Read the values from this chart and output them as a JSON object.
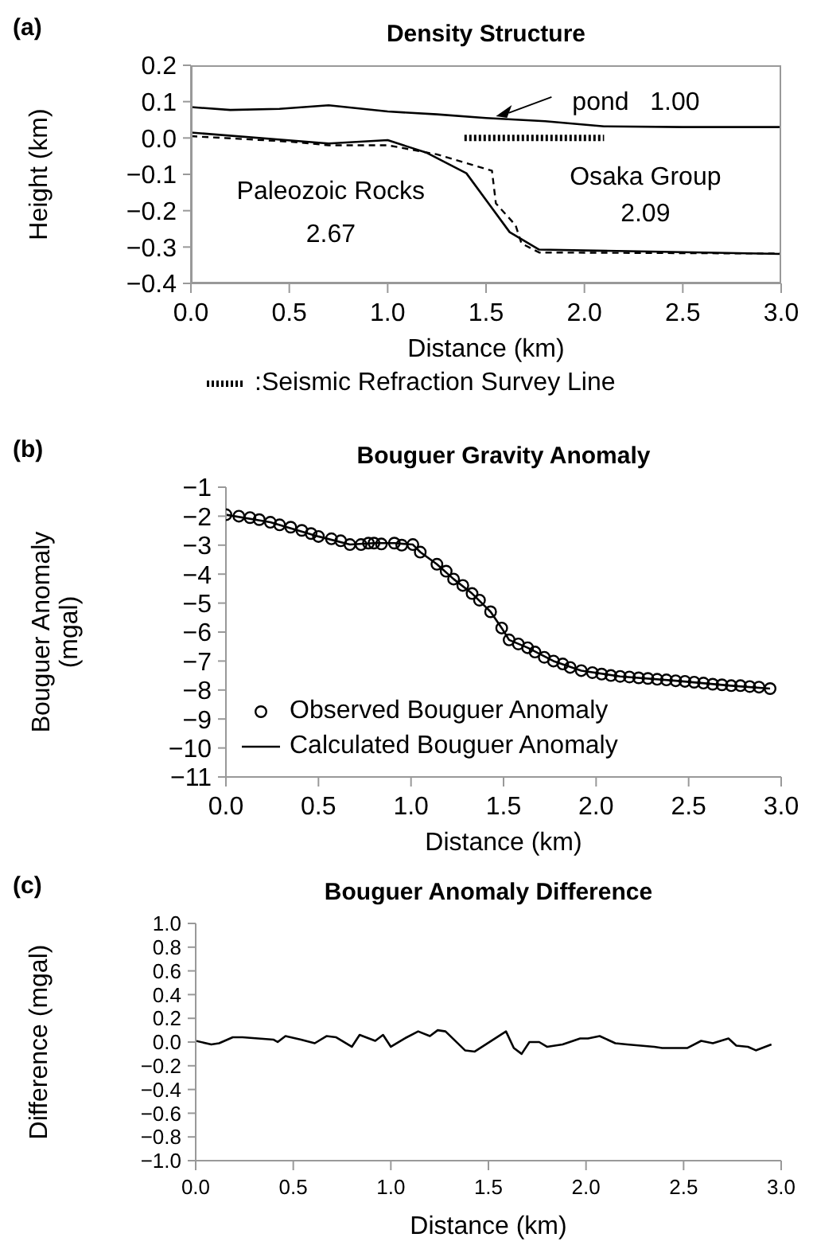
{
  "chart_data": [
    {
      "type": "line",
      "title": "Density Structure",
      "xlabel": "Distance (km)",
      "ylabel": "Height (km)",
      "xlim": [
        0,
        3
      ],
      "xticks": [
        {
          "value": 0,
          "label": "0.0"
        },
        0.5,
        {
          "value": 1,
          "label": "1.0"
        },
        1.5,
        {
          "value": 2,
          "label": "2.0"
        },
        2.5,
        {
          "value": 3,
          "label": "3.0"
        }
      ],
      "ylim": [
        -0.4,
        0.2
      ],
      "yticks": [
        -0.4,
        -0.3,
        -0.2,
        -0.1,
        {
          "value": 0,
          "label": "0.0"
        },
        0.1,
        0.2
      ],
      "grid": false,
      "legend": "bottom",
      "series": [
        {
          "color": "#000000",
          "x": [
            0,
            0.2,
            0.45,
            0.7,
            1.0,
            1.25,
            1.5,
            1.8,
            2.1,
            2.5,
            3.0
          ],
          "values": [
            0.085,
            0.077,
            0.08,
            0.09,
            0.073,
            0.065,
            0.055,
            0.046,
            0.032,
            0.03,
            0.03
          ]
        },
        {
          "color": "#000000",
          "line_style": "dashed",
          "x": [
            0,
            0.5,
            0.7,
            1.0,
            1.25,
            1.53,
            1.55,
            1.65,
            1.68,
            1.77,
            3.0
          ],
          "values": [
            0.005,
            -0.01,
            -0.02,
            -0.02,
            -0.045,
            -0.09,
            -0.18,
            -0.24,
            -0.29,
            -0.315,
            -0.318
          ]
        },
        {
          "color": "#000000",
          "x": [
            0,
            0.7,
            1.0,
            1.2,
            1.4,
            1.62,
            1.77,
            3.0
          ],
          "values": [
            0.015,
            -0.015,
            -0.006,
            -0.041,
            -0.097,
            -0.259,
            -0.307,
            -0.319
          ]
        },
        {
          "name": ":Seismic Refraction Survey Line",
          "color": "#000000",
          "line_style": "dotted",
          "x": [
            1.39,
            2.1
          ],
          "values": [
            0,
            0
          ]
        }
      ],
      "annotations": [
        "(a)",
        {
          "text": "pond   1.00",
          "x": 1.55,
          "y": 0.06
        },
        "Paleozoic Rocks",
        "2.67",
        "Osaka Group",
        "2.09"
      ]
    },
    {
      "type": "line",
      "title": "Bouguer Gravity Anomaly",
      "xlabel": "Distance (km)",
      "ylabel": "Bouguer Anomaly (mgal)",
      "xlim": [
        0,
        3
      ],
      "xticks": [
        {
          "value": 0,
          "label": "0.0"
        },
        0.5,
        {
          "value": 1,
          "label": "1.0"
        },
        1.5,
        {
          "value": 2,
          "label": "2.0"
        },
        2.5,
        {
          "value": 3,
          "label": "3.0"
        }
      ],
      "ylim": [
        -11,
        -1
      ],
      "yticks": [
        -11,
        -10,
        -9,
        -8,
        -7,
        -6,
        -5,
        -4,
        -3,
        -2,
        -1
      ],
      "grid": false,
      "legend": "bottom left",
      "series": [
        {
          "name": "Observed Bouguer Anomaly",
          "type": "scatter",
          "marker": "circle",
          "color": "#000000",
          "x": [
            0,
            0.07,
            0.13,
            0.18,
            0.24,
            0.29,
            0.35,
            0.41,
            0.46,
            0.5,
            0.57,
            0.62,
            0.67,
            0.73,
            0.77,
            0.8,
            0.84,
            0.91,
            0.95,
            1.01,
            1.05,
            1.14,
            1.19,
            1.23,
            1.28,
            1.33,
            1.37,
            1.43,
            1.49,
            1.53,
            1.58,
            1.63,
            1.67,
            1.72,
            1.77,
            1.82,
            1.86,
            1.92,
            1.98,
            2.03,
            2.08,
            2.13,
            2.18,
            2.23,
            2.28,
            2.33,
            2.38,
            2.43,
            2.48,
            2.53,
            2.58,
            2.63,
            2.68,
            2.73,
            2.78,
            2.83,
            2.88,
            2.94
          ],
          "values": [
            -1.95,
            -2.0,
            -2.05,
            -2.12,
            -2.21,
            -2.3,
            -2.38,
            -2.49,
            -2.6,
            -2.7,
            -2.78,
            -2.85,
            -2.98,
            -2.98,
            -2.93,
            -2.93,
            -2.96,
            -2.93,
            -3.0,
            -2.98,
            -3.24,
            -3.66,
            -3.9,
            -4.17,
            -4.39,
            -4.67,
            -4.9,
            -5.3,
            -5.86,
            -6.27,
            -6.41,
            -6.54,
            -6.69,
            -6.87,
            -7.0,
            -7.1,
            -7.22,
            -7.33,
            -7.4,
            -7.45,
            -7.5,
            -7.53,
            -7.55,
            -7.58,
            -7.6,
            -7.63,
            -7.65,
            -7.68,
            -7.7,
            -7.73,
            -7.76,
            -7.8,
            -7.82,
            -7.85,
            -7.85,
            -7.88,
            -7.9,
            -7.95
          ]
        },
        {
          "name": "Calculated Bouguer Anomaly",
          "color": "#000000",
          "x": [
            0,
            0.24,
            0.5,
            0.67,
            0.8,
            0.91,
            1.01,
            1.05,
            1.14,
            1.23,
            1.33,
            1.43,
            1.49,
            1.53,
            1.63,
            1.77,
            1.92,
            2.13,
            2.43,
            2.73,
            2.94
          ],
          "values": [
            -1.95,
            -2.21,
            -2.7,
            -2.98,
            -2.93,
            -2.93,
            -2.98,
            -3.24,
            -3.66,
            -4.17,
            -4.67,
            -5.3,
            -5.86,
            -6.27,
            -6.54,
            -7.0,
            -7.33,
            -7.53,
            -7.68,
            -7.85,
            -7.95
          ]
        }
      ],
      "annotations": [
        "(b)"
      ]
    },
    {
      "type": "line",
      "title": "Bouguer Anomaly Difference",
      "xlabel": "Distance (km)",
      "ylabel": "Difference (mgal)",
      "xlim": [
        0,
        3
      ],
      "xticks": [
        {
          "value": 0,
          "label": "0.0"
        },
        0.5,
        {
          "value": 1,
          "label": "1.0"
        },
        1.5,
        {
          "value": 2,
          "label": "2.0"
        },
        2.5,
        {
          "value": 3,
          "label": "3.0"
        }
      ],
      "ylim": [
        -1,
        1
      ],
      "yticks": [
        {
          "value": -1,
          "label": "−1.0"
        },
        -0.8,
        -0.6,
        -0.4,
        -0.2,
        {
          "value": 0,
          "label": "0.0"
        },
        0.2,
        0.4,
        0.6,
        0.8,
        {
          "value": 1,
          "label": "1.0"
        }
      ],
      "grid": false,
      "series": [
        {
          "color": "#000000",
          "x": [
            0,
            0.08,
            0.12,
            0.19,
            0.24,
            0.32,
            0.4,
            0.42,
            0.46,
            0.54,
            0.61,
            0.67,
            0.72,
            0.8,
            0.84,
            0.92,
            0.96,
            1.0,
            1.07,
            1.14,
            1.2,
            1.24,
            1.28,
            1.38,
            1.43,
            1.59,
            1.63,
            1.67,
            1.71,
            1.76,
            1.8,
            1.88,
            1.97,
            2.01,
            2.07,
            2.15,
            2.21,
            2.35,
            2.39,
            2.52,
            2.59,
            2.65,
            2.73,
            2.77,
            2.83,
            2.87,
            2.95
          ],
          "values": [
            0.01,
            -0.02,
            -0.01,
            0.04,
            0.04,
            0.03,
            0.02,
            0.0,
            0.05,
            0.02,
            -0.01,
            0.05,
            0.04,
            -0.04,
            0.06,
            0.01,
            0.06,
            -0.04,
            0.03,
            0.09,
            0.05,
            0.1,
            0.09,
            -0.07,
            -0.08,
            0.09,
            -0.05,
            -0.1,
            0.0,
            0.0,
            -0.04,
            -0.02,
            0.03,
            0.03,
            0.05,
            -0.01,
            -0.02,
            -0.04,
            -0.05,
            -0.05,
            0.01,
            -0.01,
            0.03,
            -0.03,
            -0.04,
            -0.07,
            -0.02
          ]
        }
      ],
      "annotations": [
        "(c)"
      ]
    }
  ]
}
